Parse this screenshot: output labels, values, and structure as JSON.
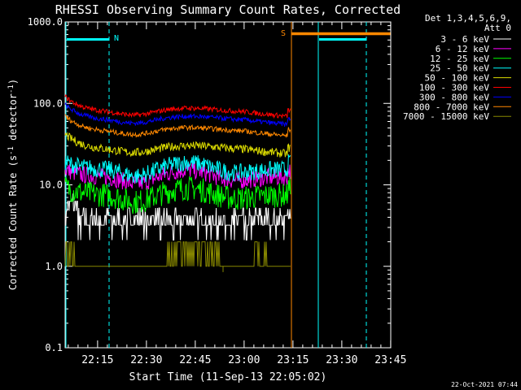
{
  "chart_data": {
    "type": "line",
    "title": "RHESSI Observing Summary Count Rates, Corrected",
    "xlabel": "Start Time (11-Sep-13 22:05:02)",
    "ylabel": "Corrected Count Rate (s",
    "ylabel_sup1": "-1",
    "ylabel_mid": " detector",
    "ylabel_sup2": "-1",
    "ylabel_end": ")",
    "y_scale": "log",
    "ylim": [
      0.1,
      1000
    ],
    "xlim_minutes": [
      0,
      100
    ],
    "x_tick_labels": [
      "22:15",
      "22:30",
      "22:45",
      "23:00",
      "23:15",
      "23:30",
      "23:45"
    ],
    "x_tick_minutes": [
      9.97,
      24.97,
      39.97,
      54.97,
      69.97,
      84.97,
      99.97
    ],
    "y_tick_labels": [
      "1000.0",
      "100.0",
      "10.0",
      "1.0",
      "0.1"
    ],
    "y_tick_values": [
      1000,
      100,
      10,
      1,
      0.1
    ],
    "legend_header": [
      "Det 1,3,4,5,6,9,",
      "Att 0"
    ],
    "legend_placement": "right",
    "series": [
      {
        "name": "3 - 6 keV",
        "color": "#ffffff",
        "base": 4.0,
        "noise": 0.55,
        "profile": "flat"
      },
      {
        "name": "6 - 12 keV",
        "color": "#ff00ff",
        "base": 12.5,
        "noise": 0.25,
        "profile": "hump"
      },
      {
        "name": "12 - 25 keV",
        "color": "#00ff00",
        "base": 7.5,
        "noise": 0.35,
        "profile": "hump"
      },
      {
        "name": "25 - 50 keV",
        "color": "#00ffff",
        "base": 15.5,
        "noise": 0.25,
        "profile": "hump"
      },
      {
        "name": "50 - 100 keV",
        "color": "#dddd00",
        "base": 27,
        "noise": 0.12,
        "profile": "decay"
      },
      {
        "name": "100 - 300 keV",
        "color": "#ff0000",
        "base": 78,
        "noise": 0.07,
        "profile": "decay"
      },
      {
        "name": "300 - 800 keV",
        "color": "#0000ff",
        "base": 62,
        "noise": 0.07,
        "profile": "decay"
      },
      {
        "name": "800 - 7000 keV",
        "color": "#ff8800",
        "base": 45,
        "noise": 0.07,
        "profile": "decay"
      },
      {
        "name": "7000 - 15000 keV",
        "color": "#888800",
        "base": 1.0,
        "noise": 0,
        "profile": "spiky"
      }
    ],
    "annotations": {
      "night_label": "N",
      "saa_label": "S",
      "night_intervals_minutes": [
        [
          0,
          13.5
        ],
        [
          77.5,
          92.5
        ]
      ],
      "saa_interval_minutes": [
        69.5,
        92.5
      ],
      "data_end_minute": 69.3,
      "night_marker_color": "#00ffff",
      "saa_marker_color": "#ff8800"
    }
  },
  "footer": {
    "timestamp": "22-Oct-2021 07:44"
  }
}
